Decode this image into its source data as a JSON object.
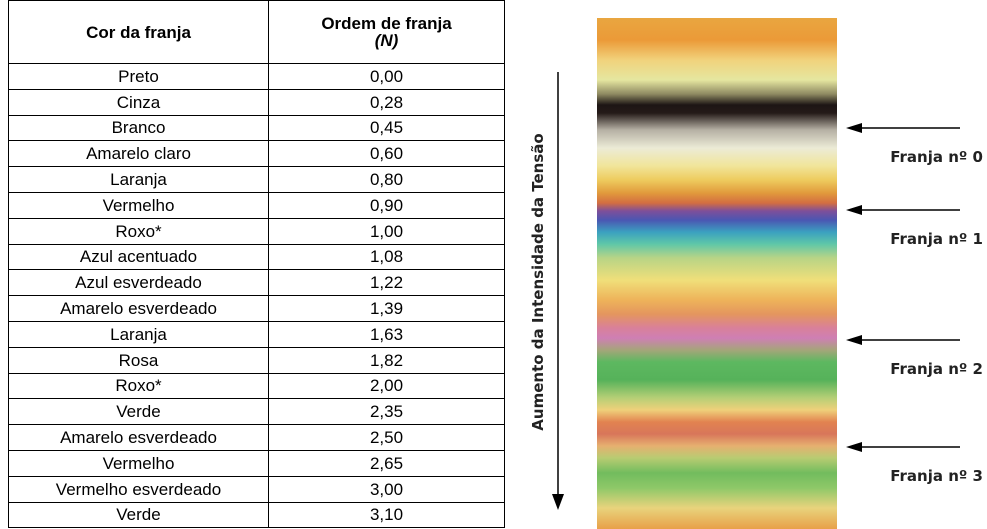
{
  "table": {
    "header": {
      "col1": "Cor da franja",
      "col2": "Ordem de franja",
      "col2_symbol": "(N)"
    },
    "rows": [
      [
        "Preto",
        "0,00"
      ],
      [
        "Cinza",
        "0,28"
      ],
      [
        "Branco",
        "0,45"
      ],
      [
        "Amarelo claro",
        "0,60"
      ],
      [
        "Laranja",
        "0,80"
      ],
      [
        "Vermelho",
        "0,90"
      ],
      [
        "Roxo*",
        "1,00"
      ],
      [
        "Azul acentuado",
        "1,08"
      ],
      [
        "Azul esverdeado",
        "1,22"
      ],
      [
        "Amarelo esverdeado",
        "1,39"
      ],
      [
        "Laranja",
        "1,63"
      ],
      [
        "Rosa",
        "1,82"
      ],
      [
        "Roxo*",
        "2,00"
      ],
      [
        "Verde",
        "2,35"
      ],
      [
        "Amarelo esverdeado",
        "2,50"
      ],
      [
        "Vermelho",
        "2,65"
      ],
      [
        "Vermelho esverdeado",
        "3,00"
      ],
      [
        "Verde",
        "3,10"
      ]
    ]
  },
  "figure": {
    "axis_label": "Aumento da Intensidade da Tensão",
    "fringes": [
      "Franja nº 0",
      "Franja nº 1",
      "Franja nº 2",
      "Franja nº 3"
    ]
  }
}
